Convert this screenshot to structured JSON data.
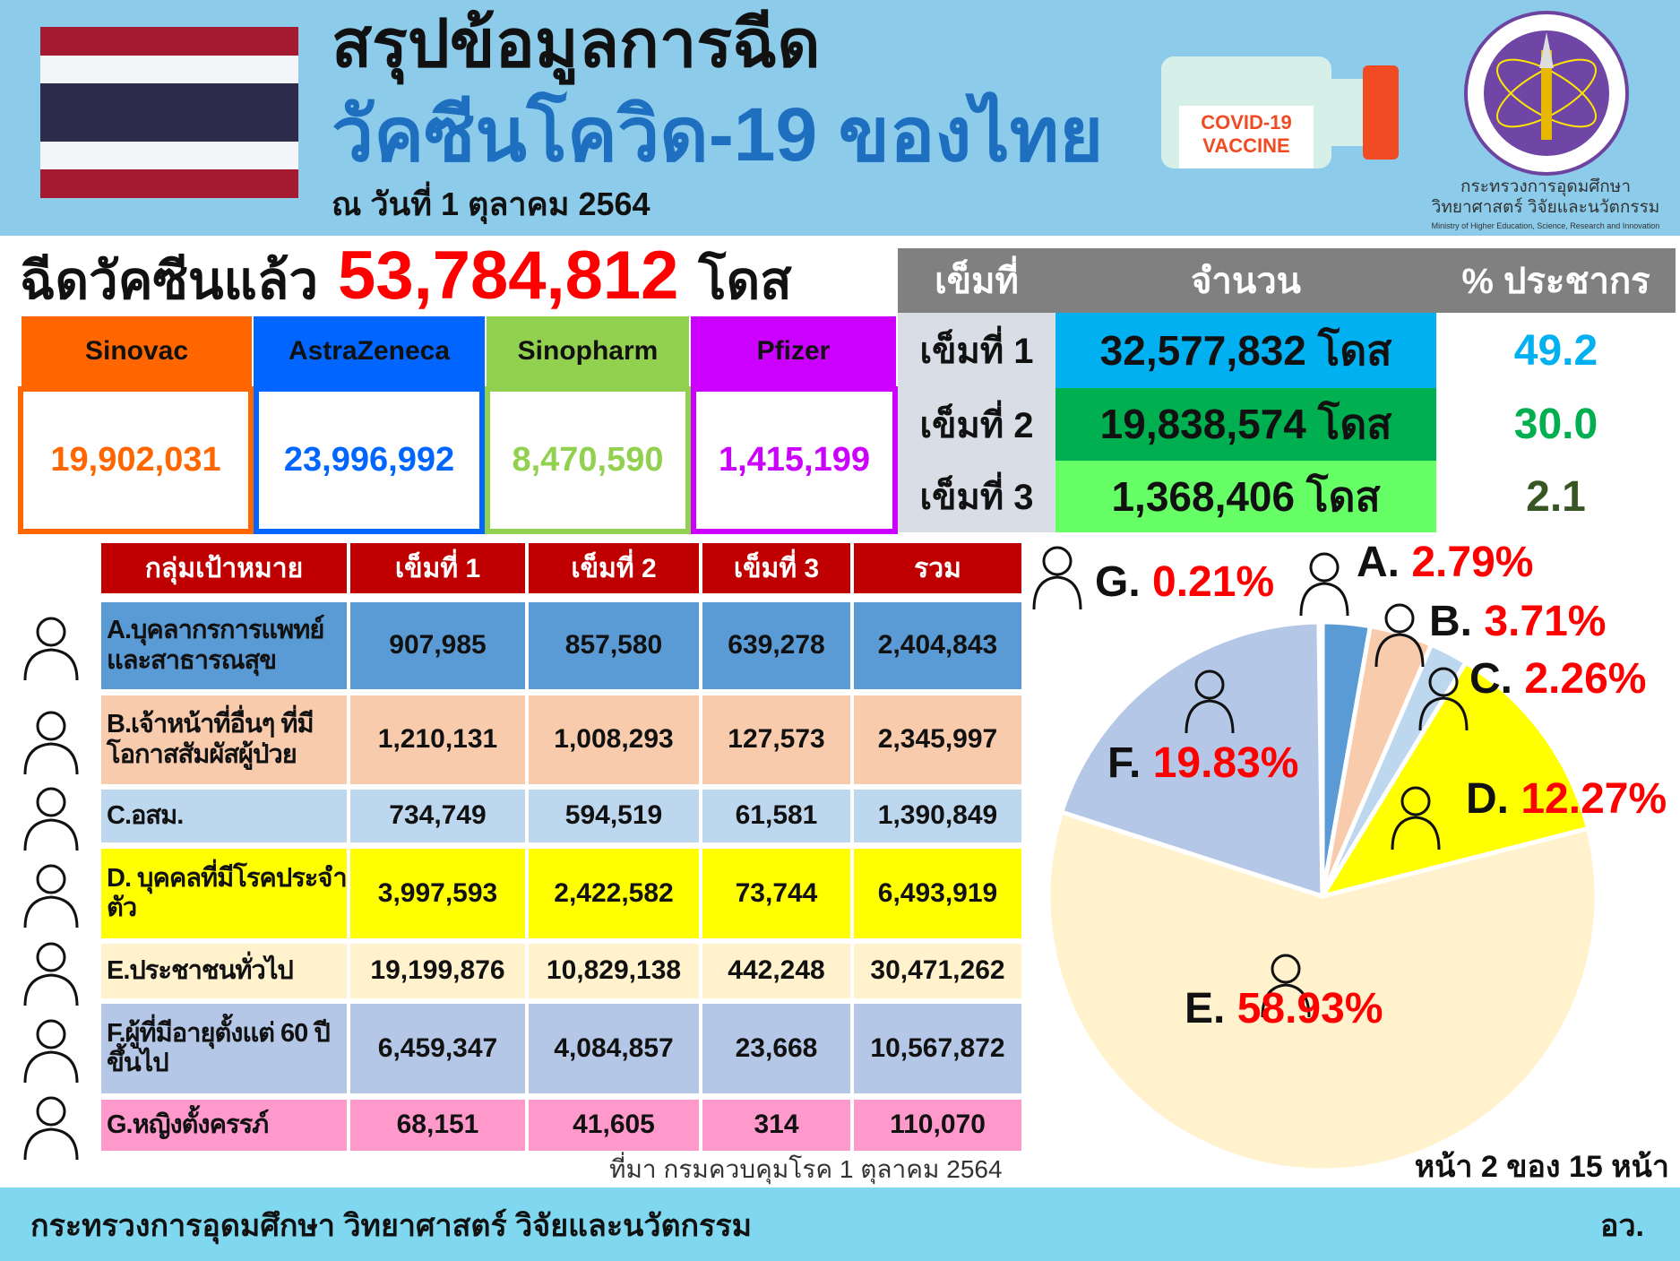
{
  "header": {
    "title_line1": "สรุปข้อมูลการฉีด",
    "title_line2": "วัคซีนโควิด-19 ของไทย",
    "date": "ณ วันที่ 1 ตุลาคม 2564",
    "vaccine_label": "COVID-19\nVACCINE",
    "ministry_th_1": "กระทรวงการอุดมศึกษา",
    "ministry_th_2": "วิทยาศาสตร์ วิจัยและนวัตกรรม",
    "ministry_en": "Ministry of Higher Education, Science, Research and Innovation",
    "flag_colors": [
      "#a51931",
      "#f4f5f8",
      "#2d2a4a"
    ]
  },
  "total": {
    "label": "ฉีดวัคซีนแล้ว",
    "value": "53,784,812",
    "unit": "โดส"
  },
  "vaccines": [
    {
      "name": "Sinovac",
      "value": "19,902,031",
      "color": "#ff6600",
      "text": "#ff6600"
    },
    {
      "name": "AstraZeneca",
      "value": "23,996,992",
      "color": "#0066ff",
      "text": "#0066ff"
    },
    {
      "name": "Sinopharm",
      "value": "8,470,590",
      "color": "#92d050",
      "text": "#92d050"
    },
    {
      "name": "Pfizer",
      "value": "1,415,199",
      "color": "#cc00ff",
      "text": "#cc00ff"
    }
  ],
  "doses": {
    "headers": [
      "เข็มที่",
      "จำนวน",
      "% ประชากร"
    ],
    "rows": [
      {
        "label": "เข็มที่ 1",
        "value": "32,577,832 โดส",
        "pct": "49.2",
        "bg": "#00b0f0",
        "pctcolor": "#00b0f0"
      },
      {
        "label": "เข็มที่ 2",
        "value": "19,838,574 โดส",
        "pct": "30.0",
        "bg": "#00b050",
        "pctcolor": "#00b050"
      },
      {
        "label": "เข็มที่ 3",
        "value": "1,368,406 โดส",
        "pct": "2.1",
        "bg": "#66ff66",
        "pctcolor": "#375623"
      }
    ]
  },
  "groups": {
    "headers": [
      "กลุ่มเป้าหมาย",
      "เข็มที่ 1",
      "เข็มที่ 2",
      "เข็มที่ 3",
      "รวม"
    ],
    "rows": [
      {
        "label": "A.บุคลากรการแพทย์ และสาธารณสุข",
        "d1": "907,985",
        "d2": "857,580",
        "d3": "639,278",
        "total": "2,404,843",
        "bg": "#5b9bd5",
        "icon": "doctor-icon"
      },
      {
        "label": "B.เจ้าหน้าที่อื่นๆ ที่มีโอกาสสัมผัสผู้ป่วย",
        "d1": "1,210,131",
        "d2": "1,008,293",
        "d3": "127,573",
        "total": "2,345,997",
        "bg": "#f8cbad",
        "icon": "officer-icon"
      },
      {
        "label": "C.อสม.",
        "d1": "734,749",
        "d2": "594,519",
        "d3": "61,581",
        "total": "1,390,849",
        "bg": "#bdd7ee",
        "icon": "health-volunteer-icon"
      },
      {
        "label": "D. บุคคลที่มีโรคประจำตัว",
        "d1": "3,997,593",
        "d2": "2,422,582",
        "d3": "73,744",
        "total": "6,493,919",
        "bg": "#ffff00",
        "icon": "patient-bed-icon"
      },
      {
        "label": "E.ประชาชนทั่วไป",
        "d1": "19,199,876",
        "d2": "10,829,138",
        "d3": "442,248",
        "total": "30,471,262",
        "bg": "#fff2cc",
        "icon": "people-icon"
      },
      {
        "label": "F.ผู้ที่มีอายุตั้งแต่ 60 ปีขึ้นไป",
        "d1": "6,459,347",
        "d2": "4,084,857",
        "d3": "23,668",
        "total": "10,567,872",
        "bg": "#b4c7e7",
        "icon": "elderly-icon"
      },
      {
        "label": "G.หญิงตั้งครรภ์",
        "d1": "68,151",
        "d2": "41,605",
        "d3": "314",
        "total": "110,070",
        "bg": "#ff99cc",
        "icon": "pregnant-icon"
      }
    ]
  },
  "chart_data": {
    "type": "pie",
    "start": "top",
    "direction": "clockwise",
    "categories": [
      "A.",
      "B.",
      "C.",
      "D.",
      "E.",
      "F.",
      "G."
    ],
    "values": [
      2.79,
      3.71,
      2.26,
      12.27,
      58.93,
      19.83,
      0.21
    ],
    "labels": [
      "2.79%",
      "3.71%",
      "2.26%",
      "12.27%",
      "58.93%",
      "19.83%",
      "0.21%"
    ],
    "colors": [
      "#5b9bd5",
      "#f8cbad",
      "#bdd7ee",
      "#ffff00",
      "#fff2cc",
      "#b4c7e7",
      "#dce6f2"
    ]
  },
  "source": "ที่มา กรมควบคุมโรค 1 ตุลาคม 2564",
  "page": "หน้า 2 ของ 15 หน้า",
  "footer": {
    "ministry": "กระทรวงการอุดมศึกษา วิทยาศาสตร์ วิจัยและนวัตกรรม",
    "abbr": "อว."
  }
}
